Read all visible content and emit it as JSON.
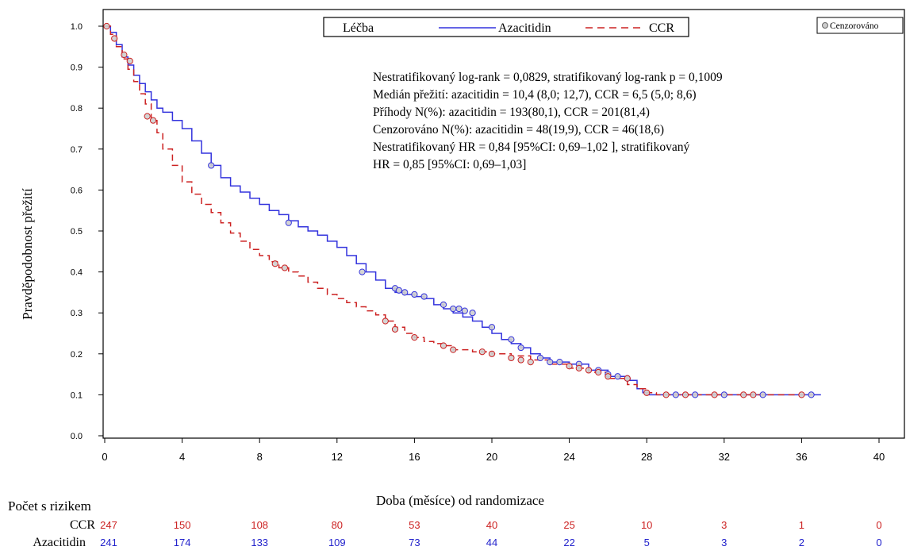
{
  "chart_data": {
    "type": "line",
    "title": "",
    "xlabel": "Doba (měsíce) od randomizace",
    "ylabel": "Pravděpodobnost přežití",
    "xlim": [
      0,
      40
    ],
    "ylim": [
      0,
      1.05
    ],
    "x_ticks": [
      "0",
      "4",
      "8",
      "12",
      "16",
      "20",
      "24",
      "28",
      "32",
      "36",
      "40"
    ],
    "y_ticks": [
      "0.0",
      "0.1",
      "0.2",
      "0.3",
      "0.4",
      "0.5",
      "0.6",
      "0.7",
      "0.8",
      "0.9",
      "1.0"
    ],
    "grid": false,
    "legend": {
      "title": "Léčba",
      "placement": "top-right",
      "censor_label": "Cenzorováno"
    },
    "annotation": [
      "Nestratifikovaný log-rank = 0,0829, stratifikovaný log-rank p = 0,1009",
      "Medián přežití: azacitidin = 10,4 (8,0; 12,7), CCR = 6,5 (5,0; 8,6)",
      "Příhody N(%): azacitidin = 193(80,1), CCR = 201(81,4)",
      "Cenzorováno N(%): azacitidin = 48(19,9), CCR = 46(18,6)",
      "Nestratifikovaný HR = 0,84 [95%CI: 0,69–1,02 ], stratifikovaný",
      "HR = 0,85 [95%CI: 0,69–1,03]"
    ],
    "series": [
      {
        "name": "Azacitidin",
        "color": "#3333dd",
        "style": "solid",
        "points": [
          [
            0,
            1.0
          ],
          [
            0.3,
            0.985
          ],
          [
            0.6,
            0.955
          ],
          [
            0.9,
            0.925
          ],
          [
            1.2,
            0.905
          ],
          [
            1.5,
            0.88
          ],
          [
            1.8,
            0.86
          ],
          [
            2.1,
            0.84
          ],
          [
            2.4,
            0.82
          ],
          [
            2.7,
            0.8
          ],
          [
            3,
            0.79
          ],
          [
            3.5,
            0.77
          ],
          [
            4,
            0.75
          ],
          [
            4.5,
            0.72
          ],
          [
            5,
            0.69
          ],
          [
            5.5,
            0.66
          ],
          [
            6,
            0.63
          ],
          [
            6.5,
            0.61
          ],
          [
            7,
            0.595
          ],
          [
            7.5,
            0.58
          ],
          [
            8,
            0.565
          ],
          [
            8.5,
            0.55
          ],
          [
            9,
            0.54
          ],
          [
            9.5,
            0.525
          ],
          [
            10,
            0.51
          ],
          [
            10.5,
            0.5
          ],
          [
            11,
            0.49
          ],
          [
            11.5,
            0.475
          ],
          [
            12,
            0.46
          ],
          [
            12.5,
            0.44
          ],
          [
            13,
            0.42
          ],
          [
            13.5,
            0.4
          ],
          [
            14,
            0.38
          ],
          [
            14.5,
            0.36
          ],
          [
            15,
            0.35
          ],
          [
            15.5,
            0.345
          ],
          [
            16,
            0.34
          ],
          [
            16.5,
            0.335
          ],
          [
            17,
            0.32
          ],
          [
            17.5,
            0.31
          ],
          [
            18,
            0.3
          ],
          [
            18.5,
            0.29
          ],
          [
            19,
            0.28
          ],
          [
            19.5,
            0.265
          ],
          [
            20,
            0.25
          ],
          [
            20.5,
            0.235
          ],
          [
            21,
            0.225
          ],
          [
            21.5,
            0.215
          ],
          [
            22,
            0.2
          ],
          [
            22.5,
            0.19
          ],
          [
            23,
            0.18
          ],
          [
            24,
            0.175
          ],
          [
            25,
            0.16
          ],
          [
            26,
            0.145
          ],
          [
            27,
            0.135
          ],
          [
            27.5,
            0.115
          ],
          [
            27.8,
            0.105
          ],
          [
            28,
            0.1
          ],
          [
            37,
            0.1
          ]
        ]
      },
      {
        "name": "CCR",
        "color": "#cc2222",
        "style": "dashed",
        "points": [
          [
            0,
            1.0
          ],
          [
            0.3,
            0.98
          ],
          [
            0.6,
            0.95
          ],
          [
            0.9,
            0.92
          ],
          [
            1.2,
            0.895
          ],
          [
            1.5,
            0.865
          ],
          [
            1.8,
            0.835
          ],
          [
            2.1,
            0.81
          ],
          [
            2.4,
            0.77
          ],
          [
            2.7,
            0.74
          ],
          [
            3,
            0.7
          ],
          [
            3.5,
            0.66
          ],
          [
            4,
            0.62
          ],
          [
            4.5,
            0.59
          ],
          [
            5,
            0.565
          ],
          [
            5.5,
            0.545
          ],
          [
            6,
            0.52
          ],
          [
            6.5,
            0.495
          ],
          [
            7,
            0.475
          ],
          [
            7.5,
            0.455
          ],
          [
            8,
            0.44
          ],
          [
            8.5,
            0.425
          ],
          [
            9,
            0.41
          ],
          [
            9.5,
            0.4
          ],
          [
            10,
            0.39
          ],
          [
            10.5,
            0.375
          ],
          [
            11,
            0.36
          ],
          [
            11.5,
            0.345
          ],
          [
            12,
            0.335
          ],
          [
            12.5,
            0.325
          ],
          [
            13,
            0.315
          ],
          [
            13.5,
            0.305
          ],
          [
            14,
            0.295
          ],
          [
            14.5,
            0.28
          ],
          [
            15,
            0.265
          ],
          [
            15.5,
            0.25
          ],
          [
            16,
            0.24
          ],
          [
            16.5,
            0.23
          ],
          [
            17,
            0.225
          ],
          [
            17.5,
            0.22
          ],
          [
            18,
            0.21
          ],
          [
            19,
            0.205
          ],
          [
            20,
            0.2
          ],
          [
            21,
            0.195
          ],
          [
            22,
            0.185
          ],
          [
            23,
            0.175
          ],
          [
            24,
            0.165
          ],
          [
            25,
            0.155
          ],
          [
            26,
            0.14
          ],
          [
            27,
            0.125
          ],
          [
            27.5,
            0.115
          ],
          [
            28,
            0.105
          ],
          [
            28.5,
            0.1
          ],
          [
            36.5,
            0.1
          ]
        ]
      }
    ],
    "censored": {
      "Azacitidin": [
        [
          5.5,
          0.66
        ],
        [
          9.5,
          0.52
        ],
        [
          13.3,
          0.4
        ],
        [
          15,
          0.36
        ],
        [
          15.2,
          0.355
        ],
        [
          15.5,
          0.35
        ],
        [
          16,
          0.345
        ],
        [
          16.5,
          0.34
        ],
        [
          17.5,
          0.32
        ],
        [
          18,
          0.31
        ],
        [
          18.3,
          0.31
        ],
        [
          18.6,
          0.305
        ],
        [
          19,
          0.3
        ],
        [
          20,
          0.265
        ],
        [
          21,
          0.235
        ],
        [
          21.5,
          0.215
        ],
        [
          22.5,
          0.19
        ],
        [
          23,
          0.18
        ],
        [
          23.5,
          0.18
        ],
        [
          24.5,
          0.175
        ],
        [
          25.5,
          0.16
        ],
        [
          26,
          0.15
        ],
        [
          26.5,
          0.145
        ],
        [
          27,
          0.14
        ],
        [
          29.5,
          0.1
        ],
        [
          30.5,
          0.1
        ],
        [
          32,
          0.1
        ],
        [
          34,
          0.1
        ],
        [
          36.5,
          0.1
        ]
      ],
      "CCR": [
        [
          0.1,
          1.0
        ],
        [
          0.5,
          0.97
        ],
        [
          1,
          0.93
        ],
        [
          1.3,
          0.915
        ],
        [
          2.2,
          0.78
        ],
        [
          2.5,
          0.77
        ],
        [
          8.8,
          0.42
        ],
        [
          9.3,
          0.41
        ],
        [
          14.5,
          0.28
        ],
        [
          15,
          0.26
        ],
        [
          16,
          0.24
        ],
        [
          17.5,
          0.22
        ],
        [
          18,
          0.21
        ],
        [
          19.5,
          0.205
        ],
        [
          20,
          0.2
        ],
        [
          21,
          0.19
        ],
        [
          21.5,
          0.185
        ],
        [
          22,
          0.18
        ],
        [
          24,
          0.17
        ],
        [
          24.5,
          0.165
        ],
        [
          25,
          0.16
        ],
        [
          25.5,
          0.155
        ],
        [
          26,
          0.145
        ],
        [
          27,
          0.14
        ],
        [
          28,
          0.105
        ],
        [
          29,
          0.1
        ],
        [
          30,
          0.1
        ],
        [
          31.5,
          0.1
        ],
        [
          33,
          0.1
        ],
        [
          33.5,
          0.1
        ],
        [
          36,
          0.1
        ]
      ]
    }
  },
  "risk_table": {
    "title": "Počet s rizikem",
    "rows": [
      {
        "label": "CCR",
        "color": "#cc2222",
        "values": [
          "247",
          "150",
          "108",
          "80",
          "53",
          "40",
          "25",
          "10",
          "3",
          "1",
          "0"
        ]
      },
      {
        "label": "Azacitidin",
        "color": "#2222cc",
        "values": [
          "241",
          "174",
          "133",
          "109",
          "73",
          "44",
          "22",
          "5",
          "3",
          "2",
          "0"
        ]
      }
    ]
  }
}
